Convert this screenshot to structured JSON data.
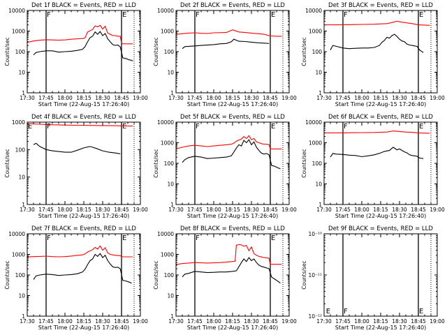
{
  "figure": {
    "time_ticks": [
      "17:30",
      "17:45",
      "18:00",
      "18:15",
      "18:30",
      "18:45",
      "19:00"
    ],
    "time_range_minutes": [
      0,
      90
    ],
    "xlabel": "Start Time (22-Aug-15 17:26:40)",
    "ylabel": "Counts/sec",
    "marker_lines_minutes": [
      15,
      75
    ],
    "dotted_line_minutes": 85,
    "colors": {
      "events": "#000000",
      "lld": "#ff0000",
      "axes": "#000000"
    }
  },
  "chart_data": [
    {
      "type": "line",
      "title": "Det 1f BLACK = Events, RED = LLD",
      "yscale": "log",
      "ylim": [
        1,
        10000
      ],
      "ytick_labels": [
        "1",
        "10",
        "100",
        "1000",
        "10000"
      ],
      "flag_labels": [
        {
          "text": "F",
          "minute": 15
        },
        {
          "text": "E",
          "minute": 75
        }
      ],
      "series": [
        {
          "name": "LLD",
          "x": [
            0,
            5,
            10,
            15,
            20,
            25,
            30,
            35,
            40,
            44,
            46,
            48,
            52,
            54,
            56,
            58,
            60,
            62,
            64,
            66,
            68,
            70,
            72,
            74,
            75,
            76,
            80,
            84
          ],
          "y": [
            280,
            330,
            360,
            380,
            370,
            360,
            370,
            400,
            420,
            430,
            470,
            900,
            1200,
            1800,
            1600,
            1900,
            1250,
            1700,
            800,
            700,
            600,
            600,
            560,
            560,
            260,
            240,
            240,
            240
          ]
        },
        {
          "name": "Events",
          "x": [
            5,
            7,
            10,
            15,
            20,
            25,
            30,
            35,
            40,
            44,
            46,
            48,
            50,
            52,
            54,
            56,
            58,
            60,
            62,
            64,
            66,
            68,
            70,
            72,
            74,
            76,
            79,
            81,
            83,
            84
          ],
          "y": [
            70,
            90,
            100,
            110,
            110,
            95,
            100,
            105,
            115,
            130,
            175,
            300,
            480,
            560,
            900,
            700,
            950,
            600,
            760,
            420,
            300,
            220,
            200,
            210,
            170,
            50,
            45,
            40,
            38,
            35
          ]
        }
      ]
    },
    {
      "type": "line",
      "title": "Det 2f BLACK = Events, RED = LLD",
      "yscale": "log",
      "ylim": [
        1,
        10000
      ],
      "ytick_labels": [
        "1",
        "10",
        "100",
        "1000",
        "10000"
      ],
      "flag_labels": [
        {
          "text": "F",
          "minute": 15
        },
        {
          "text": "E",
          "minute": 75
        }
      ],
      "series": [
        {
          "name": "LLD",
          "x": [
            0,
            10,
            15,
            20,
            25,
            30,
            40,
            45,
            50,
            55,
            60,
            70,
            75,
            80,
            84
          ],
          "y": [
            700,
            800,
            820,
            780,
            760,
            820,
            850,
            1150,
            900,
            850,
            800,
            700,
            580,
            560,
            560
          ]
        },
        {
          "name": "Events",
          "x": [
            5,
            7,
            15,
            20,
            30,
            35,
            40,
            44,
            46,
            50,
            55,
            60,
            65,
            70,
            74
          ],
          "y": [
            140,
            175,
            190,
            200,
            220,
            240,
            250,
            300,
            400,
            320,
            310,
            290,
            270,
            260,
            250
          ]
        }
      ]
    },
    {
      "type": "line",
      "title": "Det 3f BLACK = Events, RED = LLD",
      "yscale": "log",
      "ylim": [
        1,
        10000
      ],
      "ytick_labels": [
        "1",
        "10",
        "100",
        "1000",
        "10000"
      ],
      "flag_labels": [
        {
          "text": "F",
          "minute": 15
        },
        {
          "text": "E",
          "minute": 75
        }
      ],
      "series": [
        {
          "name": "LLD",
          "x": [
            0,
            10,
            20,
            30,
            40,
            50,
            54,
            58,
            62,
            66,
            70,
            75,
            84
          ],
          "y": [
            2000,
            2000,
            2050,
            2100,
            2150,
            2300,
            2600,
            3000,
            2700,
            2500,
            2300,
            2000,
            1900
          ]
        },
        {
          "name": "Events",
          "x": [
            5,
            7,
            10,
            15,
            20,
            25,
            30,
            35,
            40,
            44,
            46,
            48,
            50,
            52,
            54,
            56,
            58,
            60,
            62,
            64,
            66,
            68,
            70,
            72,
            74,
            76,
            79
          ],
          "y": [
            120,
            200,
            180,
            150,
            140,
            145,
            150,
            150,
            160,
            200,
            280,
            350,
            500,
            450,
            600,
            700,
            550,
            400,
            330,
            300,
            230,
            210,
            200,
            190,
            180,
            120,
            90
          ]
        }
      ]
    },
    {
      "type": "line",
      "title": "Det 4f BLACK = Events, RED = LLD",
      "yscale": "log",
      "ylim": [
        1,
        1000
      ],
      "ytick_labels": [
        "1",
        "10",
        "100",
        "1000"
      ],
      "flag_labels": [
        {
          "text": "E",
          "minute": 0
        },
        {
          "text": "F",
          "minute": 15
        },
        {
          "text": "E",
          "minute": 75
        }
      ],
      "series": [
        {
          "name": "LLD",
          "x": [
            0,
            5,
            10,
            15,
            20,
            30,
            40,
            50,
            60,
            70,
            75,
            84
          ],
          "y": [
            880,
            860,
            840,
            820,
            800,
            780,
            770,
            760,
            750,
            740,
            730,
            720
          ]
        },
        {
          "name": "Events",
          "x": [
            5,
            7,
            10,
            15,
            20,
            25,
            30,
            35,
            40,
            45,
            50,
            55,
            60,
            65,
            70,
            74
          ],
          "y": [
            150,
            170,
            130,
            100,
            90,
            85,
            80,
            80,
            95,
            115,
            130,
            110,
            90,
            80,
            75,
            70
          ]
        }
      ]
    },
    {
      "type": "line",
      "title": "Det 5f BLACK = Events, RED = LLD",
      "yscale": "log",
      "ylim": [
        1,
        10000
      ],
      "ytick_labels": [
        "1",
        "10",
        "100",
        "1000",
        "10000"
      ],
      "flag_labels": [
        {
          "text": "F",
          "minute": 15
        },
        {
          "text": "E",
          "minute": 75
        }
      ],
      "series": [
        {
          "name": "LLD",
          "x": [
            0,
            5,
            10,
            15,
            20,
            25,
            30,
            35,
            40,
            44,
            46,
            48,
            52,
            54,
            56,
            58,
            60,
            62,
            64,
            66,
            68,
            70,
            72,
            74,
            75,
            80,
            84
          ],
          "y": [
            500,
            600,
            700,
            750,
            700,
            650,
            700,
            750,
            800,
            850,
            950,
            1200,
            1500,
            2000,
            1600,
            2200,
            1400,
            1600,
            1100,
            1000,
            900,
            850,
            850,
            800,
            500,
            500,
            500
          ]
        },
        {
          "name": "Events",
          "x": [
            5,
            7,
            10,
            15,
            20,
            25,
            30,
            35,
            40,
            44,
            46,
            48,
            50,
            52,
            54,
            56,
            58,
            60,
            62,
            64,
            66,
            68,
            70,
            72,
            74,
            76,
            79,
            81,
            83
          ],
          "y": [
            110,
            150,
            190,
            220,
            200,
            170,
            180,
            190,
            200,
            230,
            350,
            550,
            800,
            700,
            1300,
            1000,
            1400,
            800,
            1100,
            600,
            420,
            310,
            280,
            300,
            260,
            80,
            70,
            60,
            55
          ]
        }
      ]
    },
    {
      "type": "line",
      "title": "Det 6f BLACK = Events, RED = LLD",
      "yscale": "log",
      "ylim": [
        1,
        10000
      ],
      "ytick_labels": [
        "1",
        "10",
        "100",
        "1000",
        "10000"
      ],
      "flag_labels": [
        {
          "text": "F",
          "minute": 15
        },
        {
          "text": "E",
          "minute": 75
        }
      ],
      "series": [
        {
          "name": "LLD",
          "x": [
            0,
            10,
            20,
            30,
            40,
            50,
            55,
            60,
            65,
            70,
            75,
            84
          ],
          "y": [
            3000,
            3000,
            3050,
            3100,
            3150,
            3300,
            3700,
            3500,
            3300,
            3200,
            3000,
            2900
          ]
        },
        {
          "name": "Events",
          "x": [
            5,
            7,
            10,
            15,
            20,
            25,
            30,
            35,
            40,
            45,
            48,
            52,
            55,
            58,
            60,
            62,
            64,
            66,
            68,
            70,
            72,
            74,
            76,
            79
          ],
          "y": [
            200,
            300,
            280,
            270,
            250,
            240,
            210,
            230,
            260,
            320,
            380,
            420,
            600,
            450,
            500,
            420,
            360,
            320,
            260,
            240,
            230,
            220,
            180,
            170
          ]
        }
      ]
    },
    {
      "type": "line",
      "title": "Det 7f BLACK = Events, RED = LLD",
      "yscale": "log",
      "ylim": [
        1,
        10000
      ],
      "ytick_labels": [
        "1",
        "10",
        "100",
        "1000",
        "10000"
      ],
      "flag_labels": [
        {
          "text": "F",
          "minute": 15
        },
        {
          "text": "E",
          "minute": 75
        }
      ],
      "series": [
        {
          "name": "LLD",
          "x": [
            0,
            5,
            10,
            15,
            20,
            25,
            30,
            35,
            40,
            44,
            46,
            48,
            52,
            54,
            56,
            58,
            60,
            62,
            64,
            66,
            68,
            70,
            72,
            74,
            75,
            80,
            84
          ],
          "y": [
            750,
            780,
            800,
            820,
            780,
            760,
            780,
            830,
            900,
            950,
            1050,
            1300,
            1700,
            2200,
            1800,
            2600,
            1600,
            2100,
            1200,
            1000,
            950,
            900,
            880,
            860,
            760,
            760,
            760
          ]
        },
        {
          "name": "Events",
          "x": [
            5,
            7,
            10,
            15,
            20,
            25,
            30,
            35,
            40,
            44,
            46,
            48,
            50,
            52,
            54,
            56,
            58,
            60,
            62,
            64,
            66,
            68,
            70,
            72,
            74,
            76,
            79,
            81,
            83
          ],
          "y": [
            60,
            90,
            100,
            110,
            105,
            95,
            100,
            105,
            115,
            140,
            190,
            320,
            500,
            600,
            1000,
            800,
            1100,
            700,
            900,
            500,
            340,
            250,
            230,
            240,
            200,
            55,
            50,
            45,
            40
          ]
        }
      ]
    },
    {
      "type": "line",
      "title": "Det 8f BLACK = Events, RED = LLD",
      "yscale": "log",
      "ylim": [
        1,
        10000
      ],
      "ytick_labels": [
        "1",
        "10",
        "100",
        "1000",
        "10000"
      ],
      "flag_labels": [
        {
          "text": "F",
          "minute": 15
        },
        {
          "text": "E",
          "minute": 75
        }
      ],
      "series": [
        {
          "name": "LLD",
          "x": [
            0,
            5,
            10,
            15,
            20,
            25,
            30,
            35,
            40,
            45,
            47,
            48,
            50,
            52,
            54,
            56,
            58,
            60,
            62,
            64,
            66,
            68,
            70,
            72,
            74,
            75,
            80,
            84
          ],
          "y": [
            320,
            360,
            380,
            400,
            390,
            380,
            390,
            400,
            420,
            450,
            460,
            2800,
            3000,
            2900,
            2500,
            2700,
            1500,
            2300,
            1100,
            900,
            800,
            750,
            700,
            680,
            650,
            330,
            330,
            330
          ]
        },
        {
          "name": "Events",
          "x": [
            5,
            7,
            10,
            15,
            20,
            25,
            30,
            35,
            40,
            45,
            48,
            50,
            52,
            54,
            56,
            58,
            60,
            62,
            64,
            66,
            68,
            70,
            72,
            74,
            76,
            79,
            81,
            83
          ],
          "y": [
            80,
            110,
            120,
            150,
            140,
            130,
            135,
            140,
            140,
            150,
            160,
            250,
            400,
            600,
            450,
            700,
            500,
            600,
            400,
            300,
            260,
            240,
            220,
            200,
            80,
            60,
            50,
            40
          ]
        }
      ]
    },
    {
      "type": "line",
      "title": "Det 9f BLACK = Events, RED = LLD",
      "yscale": "log",
      "ylim": [
        1e-12,
        1e-10
      ],
      "ytick_labels": [
        "10⁻¹²",
        "10⁻¹¹",
        "10⁻¹⁰"
      ],
      "flag_labels": [
        {
          "text": "E",
          "minute": 1
        },
        {
          "text": "F",
          "minute": 15
        },
        {
          "text": "E",
          "minute": 75
        }
      ],
      "series": []
    }
  ]
}
